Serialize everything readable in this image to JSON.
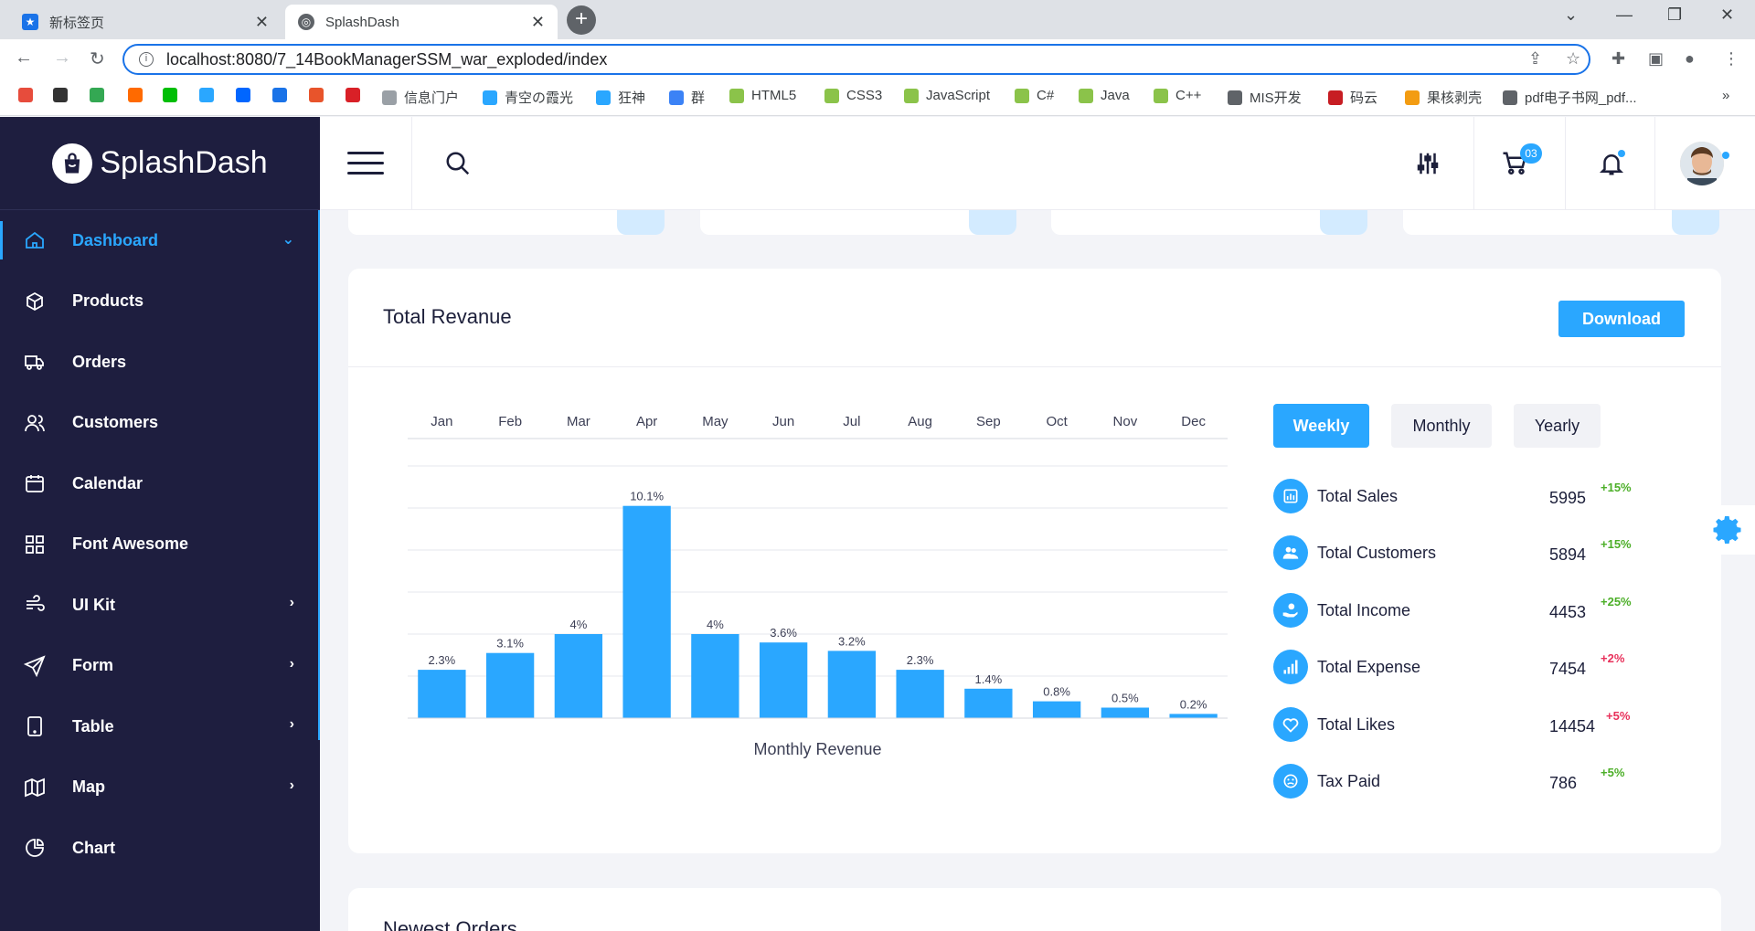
{
  "browser": {
    "tabs": [
      {
        "title": "新标签页",
        "active": false
      },
      {
        "title": "SplashDash",
        "active": true
      }
    ],
    "url": "localhost:8080/7_14BookManagerSSM_war_exploded/index",
    "bookmarks": [
      {
        "label": "",
        "icon": "colorful-icon",
        "color": "#e74c3c"
      },
      {
        "label": "",
        "icon": "bear-icon",
        "color": "#333333"
      },
      {
        "label": "",
        "icon": "play-icon",
        "color": "#34a853"
      },
      {
        "label": "",
        "icon": "taobao-icon",
        "color": "#ff6a00"
      },
      {
        "label": "",
        "icon": "iqiyi-icon",
        "color": "#00be06"
      },
      {
        "label": "",
        "icon": "bilibili-icon",
        "color": "#2aa7ff"
      },
      {
        "label": "",
        "icon": "zhihu-icon",
        "color": "#0066ff"
      },
      {
        "label": "",
        "icon": "translate-icon",
        "color": "#1a73e8"
      },
      {
        "label": "",
        "icon": "c-icon",
        "color": "#e8542b"
      },
      {
        "label": "",
        "icon": "red-icon",
        "color": "#d92027"
      },
      {
        "label": "信息门户",
        "icon": "home-icon",
        "color": "#9aa0a6"
      },
      {
        "label": "青空の霞光",
        "icon": "bilibili-icon",
        "color": "#2aa7ff"
      },
      {
        "label": "狂神",
        "icon": "bilibili-icon",
        "color": "#2aa7ff"
      },
      {
        "label": "群",
        "icon": "group-icon",
        "color": "#3b82f6"
      },
      {
        "label": "HTML5",
        "icon": "code-icon",
        "color": "#8bc34a"
      },
      {
        "label": "CSS3",
        "icon": "code-icon",
        "color": "#8bc34a"
      },
      {
        "label": "JavaScript",
        "icon": "code-icon",
        "color": "#8bc34a"
      },
      {
        "label": "C#",
        "icon": "code-icon",
        "color": "#8bc34a"
      },
      {
        "label": "Java",
        "icon": "code-icon",
        "color": "#8bc34a"
      },
      {
        "label": "C++",
        "icon": "code-icon",
        "color": "#8bc34a"
      },
      {
        "label": "MIS开发",
        "icon": "globe-icon",
        "color": "#5f6368"
      },
      {
        "label": "码云",
        "icon": "gitee-icon",
        "color": "#c71d23"
      },
      {
        "label": "果核剥壳",
        "icon": "fruit-icon",
        "color": "#f39c12"
      },
      {
        "label": "pdf电子书网_pdf...",
        "icon": "globe-icon",
        "color": "#5f6368"
      }
    ]
  },
  "brand": {
    "name": "SplashDash"
  },
  "sidebar": {
    "items": [
      {
        "label": "Dashboard",
        "icon": "home-icon",
        "active": true,
        "chevron": "down"
      },
      {
        "label": "Products",
        "icon": "box-icon",
        "active": false,
        "chevron": ""
      },
      {
        "label": "Orders",
        "icon": "truck-icon",
        "active": false,
        "chevron": ""
      },
      {
        "label": "Customers",
        "icon": "users-icon",
        "active": false,
        "chevron": ""
      },
      {
        "label": "Calendar",
        "icon": "calendar-icon",
        "active": false,
        "chevron": ""
      },
      {
        "label": "Font Awesome",
        "icon": "grid-icon",
        "active": false,
        "chevron": ""
      },
      {
        "label": "UI Kit",
        "icon": "wind-icon",
        "active": false,
        "chevron": "right"
      },
      {
        "label": "Form",
        "icon": "send-icon",
        "active": false,
        "chevron": "right"
      },
      {
        "label": "Table",
        "icon": "tablet-icon",
        "active": false,
        "chevron": "right"
      },
      {
        "label": "Map",
        "icon": "map-icon",
        "active": false,
        "chevron": "right"
      },
      {
        "label": "Chart",
        "icon": "pie-chart-icon",
        "active": false,
        "chevron": ""
      }
    ]
  },
  "header": {
    "cart_count": "03"
  },
  "revenue": {
    "title": "Total Revanue",
    "download_label": "Download",
    "periods": [
      {
        "label": "Weekly",
        "active": true
      },
      {
        "label": "Monthly",
        "active": false
      },
      {
        "label": "Yearly",
        "active": false
      }
    ],
    "stats": [
      {
        "label": "Total Sales",
        "value": "5995",
        "change": "+15%",
        "trend": "up",
        "icon": "bar-chart-icon"
      },
      {
        "label": "Total Customers",
        "value": "5894",
        "change": "+15%",
        "trend": "up",
        "icon": "users-icon"
      },
      {
        "label": "Total Income",
        "value": "4453",
        "change": "+25%",
        "trend": "up",
        "icon": "hand-coin-icon"
      },
      {
        "label": "Total Expense",
        "value": "7454",
        "change": "+2%",
        "trend": "down",
        "icon": "signal-icon"
      },
      {
        "label": "Total Likes",
        "value": "14454",
        "change": "+5%",
        "trend": "down",
        "icon": "heart-icon"
      },
      {
        "label": "Tax Paid",
        "value": "786",
        "change": "+5%",
        "trend": "up",
        "icon": "smile-icon"
      }
    ]
  },
  "colors": {
    "accent": "#2aa7ff",
    "sidebar_bg": "#1e1e3f",
    "positive": "#4caf28",
    "negative": "#e8315b"
  },
  "chart_data": {
    "type": "bar",
    "categories": [
      "Jan",
      "Feb",
      "Mar",
      "Apr",
      "May",
      "Jun",
      "Jul",
      "Aug",
      "Sep",
      "Oct",
      "Nov",
      "Dec"
    ],
    "values": [
      2.3,
      3.1,
      4,
      10.1,
      4,
      3.6,
      3.2,
      2.3,
      1.4,
      0.8,
      0.5,
      0.2
    ],
    "data_labels": [
      "2.3%",
      "3.1%",
      "4%",
      "10.1%",
      "4%",
      "3.6%",
      "3.2%",
      "2.3%",
      "1.4%",
      "0.8%",
      "0.5%",
      "0.2%"
    ],
    "title": "Monthly Revenue",
    "xlabel": "",
    "ylabel": "",
    "ylim": [
      0,
      12
    ],
    "x_axis_position": "top",
    "grid": true,
    "color": "#2aa7ff"
  },
  "next_section": {
    "title": "Newest Orders"
  }
}
